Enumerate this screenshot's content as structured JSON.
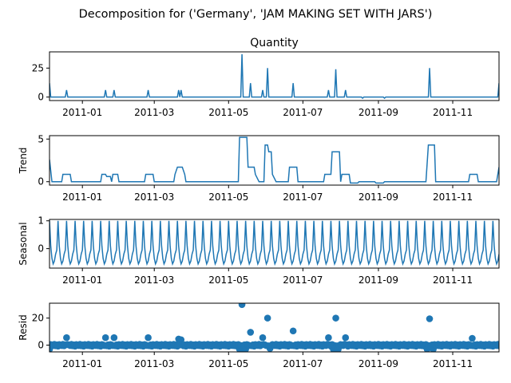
{
  "suptitle": "Decomposition for ('Germany', 'JAM MAKING SET WITH JARS')",
  "colors": {
    "line": "#1f77b4",
    "marker": "#1f77b4",
    "axis": "#000000",
    "background": "#ffffff"
  },
  "chart_data": [
    {
      "type": "line",
      "title": "Quantity",
      "ylabel": "",
      "x_range": [
        "2011-12-05",
        "2011-12-09"
      ],
      "x_axis": {
        "start": "2010-12-05",
        "end": "2011-12-09",
        "ticks": [
          "2011-01",
          "2011-03",
          "2011-05",
          "2011-07",
          "2011-09",
          "2011-11"
        ]
      },
      "ylim": [
        -3,
        39
      ],
      "yticks": [
        0,
        25
      ],
      "baseline": 0,
      "events": [
        {
          "date": "2010-12-05",
          "value": 12
        },
        {
          "date": "2010-12-19",
          "value": 6
        },
        {
          "date": "2011-01-20",
          "value": 6
        },
        {
          "date": "2011-01-27",
          "value": 6
        },
        {
          "date": "2011-02-24",
          "value": 6
        },
        {
          "date": "2011-03-21",
          "value": 6
        },
        {
          "date": "2011-03-23",
          "value": 6
        },
        {
          "date": "2011-05-12",
          "value": 37
        },
        {
          "date": "2011-05-19",
          "value": 12
        },
        {
          "date": "2011-05-29",
          "value": 6
        },
        {
          "date": "2011-06-02",
          "value": 25
        },
        {
          "date": "2011-06-23",
          "value": 12
        },
        {
          "date": "2011-07-22",
          "value": 6
        },
        {
          "date": "2011-07-28",
          "value": 24
        },
        {
          "date": "2011-08-05",
          "value": 6
        },
        {
          "date": "2011-08-19",
          "value": -1
        },
        {
          "date": "2011-09-06",
          "value": -1
        },
        {
          "date": "2011-10-13",
          "value": 25
        },
        {
          "date": "2011-12-09",
          "value": 12
        }
      ]
    },
    {
      "type": "line",
      "title": "",
      "ylabel": "Trend",
      "ylim": [
        -0.4,
        5.4
      ],
      "yticks": [
        0,
        5
      ],
      "points": [
        {
          "date": "2010-12-05",
          "value": 2.6
        },
        {
          "date": "2010-12-07",
          "value": 0
        },
        {
          "date": "2010-12-15",
          "value": 0
        },
        {
          "date": "2010-12-16",
          "value": 0.86
        },
        {
          "date": "2010-12-22",
          "value": 0.86
        },
        {
          "date": "2010-12-23",
          "value": 0
        },
        {
          "date": "2011-01-16",
          "value": 0
        },
        {
          "date": "2011-01-17",
          "value": 0.86
        },
        {
          "date": "2011-01-20",
          "value": 0.86
        },
        {
          "date": "2011-01-21",
          "value": 0.6
        },
        {
          "date": "2011-01-24",
          "value": 0.6
        },
        {
          "date": "2011-01-25",
          "value": 0
        },
        {
          "date": "2011-01-26",
          "value": 0.86
        },
        {
          "date": "2011-01-30",
          "value": 0.86
        },
        {
          "date": "2011-01-31",
          "value": 0
        },
        {
          "date": "2011-02-21",
          "value": 0
        },
        {
          "date": "2011-02-22",
          "value": 0.86
        },
        {
          "date": "2011-02-28",
          "value": 0.86
        },
        {
          "date": "2011-03-01",
          "value": 0
        },
        {
          "date": "2011-03-17",
          "value": 0
        },
        {
          "date": "2011-03-18",
          "value": 0.86
        },
        {
          "date": "2011-03-20",
          "value": 1.7
        },
        {
          "date": "2011-03-24",
          "value": 1.7
        },
        {
          "date": "2011-03-26",
          "value": 0.86
        },
        {
          "date": "2011-03-27",
          "value": 0
        },
        {
          "date": "2011-05-09",
          "value": 0
        },
        {
          "date": "2011-05-10",
          "value": 5.2
        },
        {
          "date": "2011-05-16",
          "value": 5.2
        },
        {
          "date": "2011-05-17",
          "value": 1.7
        },
        {
          "date": "2011-05-22",
          "value": 1.7
        },
        {
          "date": "2011-05-23",
          "value": 0.86
        },
        {
          "date": "2011-05-26",
          "value": 0
        },
        {
          "date": "2011-05-30",
          "value": 0
        },
        {
          "date": "2011-05-31",
          "value": 4.3
        },
        {
          "date": "2011-06-02",
          "value": 4.3
        },
        {
          "date": "2011-06-03",
          "value": 3.5
        },
        {
          "date": "2011-06-05",
          "value": 3.5
        },
        {
          "date": "2011-06-06",
          "value": 0.86
        },
        {
          "date": "2011-06-09",
          "value": 0
        },
        {
          "date": "2011-06-19",
          "value": 0
        },
        {
          "date": "2011-06-20",
          "value": 1.7
        },
        {
          "date": "2011-06-26",
          "value": 1.7
        },
        {
          "date": "2011-06-27",
          "value": 0
        },
        {
          "date": "2011-07-18",
          "value": 0
        },
        {
          "date": "2011-07-19",
          "value": 0.86
        },
        {
          "date": "2011-07-24",
          "value": 0.86
        },
        {
          "date": "2011-07-25",
          "value": 3.5
        },
        {
          "date": "2011-07-31",
          "value": 3.5
        },
        {
          "date": "2011-08-01",
          "value": 0
        },
        {
          "date": "2011-08-02",
          "value": 0.86
        },
        {
          "date": "2011-08-08",
          "value": 0.86
        },
        {
          "date": "2011-08-09",
          "value": -0.15
        },
        {
          "date": "2011-08-15",
          "value": -0.15
        },
        {
          "date": "2011-08-16",
          "value": 0
        },
        {
          "date": "2011-08-29",
          "value": 0
        },
        {
          "date": "2011-08-30",
          "value": -0.15
        },
        {
          "date": "2011-09-05",
          "value": -0.15
        },
        {
          "date": "2011-09-06",
          "value": 0
        },
        {
          "date": "2011-10-10",
          "value": 0
        },
        {
          "date": "2011-10-12",
          "value": 4.3
        },
        {
          "date": "2011-10-17",
          "value": 4.3
        },
        {
          "date": "2011-10-18",
          "value": 0
        },
        {
          "date": "2011-11-14",
          "value": 0
        },
        {
          "date": "2011-11-15",
          "value": 0.86
        },
        {
          "date": "2011-11-21",
          "value": 0.86
        },
        {
          "date": "2011-11-22",
          "value": 0
        },
        {
          "date": "2011-12-07",
          "value": 0
        },
        {
          "date": "2011-12-09",
          "value": 1.7
        }
      ]
    },
    {
      "type": "line",
      "title": "",
      "ylabel": "Seasonal",
      "ylim": [
        -0.7,
        1.05
      ],
      "yticks": [
        0,
        1
      ],
      "period_days": 7,
      "weekly_pattern": [
        1.0,
        0.1,
        -0.35,
        -0.55,
        -0.45,
        -0.2,
        -0.05
      ]
    },
    {
      "type": "scatter",
      "title": "",
      "ylabel": "Resid",
      "ylim": [
        -5,
        31
      ],
      "yticks": [
        0,
        20
      ],
      "baseline_offset_pattern": [
        -0.8,
        0.4,
        0.1,
        -0.3,
        0.6,
        -0.5,
        0.2
      ],
      "outliers": [
        {
          "date": "2010-12-19",
          "value": 5.5
        },
        {
          "date": "2011-01-20",
          "value": 5.5
        },
        {
          "date": "2011-01-27",
          "value": 5.5
        },
        {
          "date": "2011-02-24",
          "value": 5.5
        },
        {
          "date": "2011-03-21",
          "value": 4.5
        },
        {
          "date": "2011-03-23",
          "value": 4.0
        },
        {
          "date": "2011-05-12",
          "value": 30
        },
        {
          "date": "2011-05-19",
          "value": 9.5
        },
        {
          "date": "2011-05-29",
          "value": 5.5
        },
        {
          "date": "2011-06-02",
          "value": 20
        },
        {
          "date": "2011-06-23",
          "value": 10.5
        },
        {
          "date": "2011-07-22",
          "value": 5.5
        },
        {
          "date": "2011-07-28",
          "value": 20
        },
        {
          "date": "2011-08-05",
          "value": 5.5
        },
        {
          "date": "2011-10-13",
          "value": 19.5
        },
        {
          "date": "2011-11-17",
          "value": 5.0
        }
      ],
      "dips": [
        {
          "date": "2011-05-10",
          "value": -3
        },
        {
          "date": "2011-05-13",
          "value": -3
        },
        {
          "date": "2011-05-15",
          "value": -3
        },
        {
          "date": "2011-06-04",
          "value": -2.5
        },
        {
          "date": "2011-07-26",
          "value": -3
        },
        {
          "date": "2011-07-30",
          "value": -3
        },
        {
          "date": "2011-10-11",
          "value": -3
        },
        {
          "date": "2011-10-16",
          "value": -3
        },
        {
          "date": "2010-12-05",
          "value": -3
        }
      ]
    }
  ]
}
